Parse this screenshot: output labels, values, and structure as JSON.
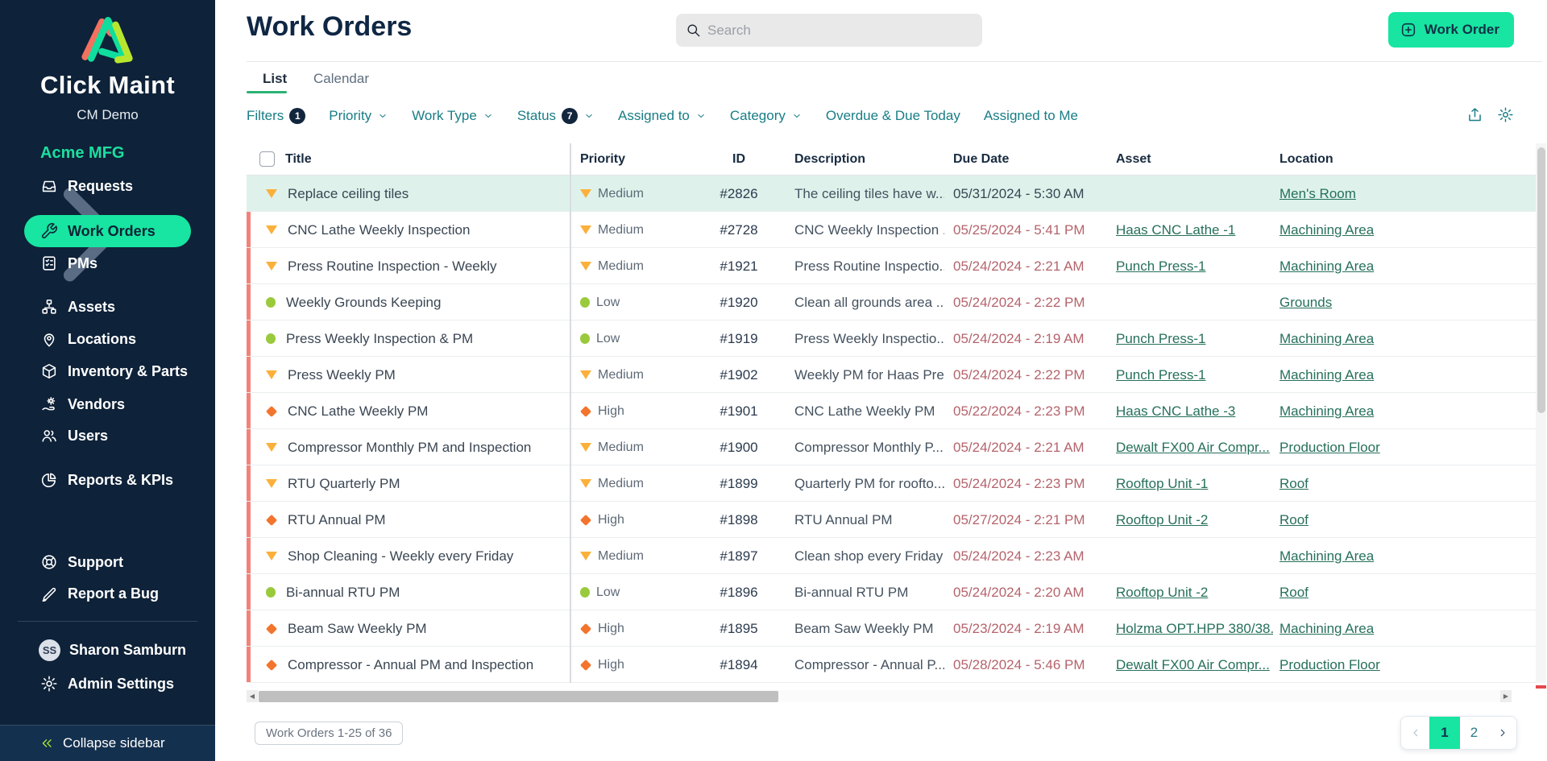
{
  "sidebar": {
    "brand": "Click Maint",
    "subtitle": "CM Demo",
    "account": {
      "label": "Acme MFG"
    },
    "nav": [
      {
        "label": "Requests",
        "icon": "requests-icon"
      },
      {
        "label": "Work Orders",
        "icon": "wrench-icon",
        "active": true
      },
      {
        "label": "PMs",
        "icon": "checklist-icon"
      },
      {
        "label": "Assets",
        "icon": "hierarchy-icon"
      },
      {
        "label": "Locations",
        "icon": "map-pin-icon"
      },
      {
        "label": "Inventory & Parts",
        "icon": "box-icon"
      },
      {
        "label": "Vendors",
        "icon": "vendor-gear-icon"
      },
      {
        "label": "Users",
        "icon": "users-icon"
      },
      {
        "label": "Reports & KPIs",
        "icon": "pie-chart-icon"
      }
    ],
    "secondary_nav": [
      {
        "label": "Support",
        "icon": "lifebuoy-icon"
      },
      {
        "label": "Report a Bug",
        "icon": "pencil-icon"
      }
    ],
    "user": {
      "initials": "SS",
      "name": "Sharon Samburn"
    },
    "admin": {
      "label": "Admin Settings",
      "icon": "gear-icon"
    },
    "collapse_label": "Collapse sidebar"
  },
  "header": {
    "title": "Work Orders",
    "search_placeholder": "Search",
    "new_button_label": "Work Order"
  },
  "tabs": [
    {
      "label": "List",
      "active": true
    },
    {
      "label": "Calendar",
      "active": false
    }
  ],
  "filters": {
    "items": [
      {
        "label": "Filters",
        "badge": "1"
      },
      {
        "label": "Priority",
        "caret": true
      },
      {
        "label": "Work Type",
        "caret": true
      },
      {
        "label": "Status",
        "badge": "7",
        "caret": true
      },
      {
        "label": "Assigned to",
        "caret": true
      },
      {
        "label": "Category",
        "caret": true
      },
      {
        "label": "Overdue & Due Today"
      },
      {
        "label": "Assigned to Me"
      }
    ],
    "action_icons": [
      "export-icon",
      "settings-gear-icon"
    ]
  },
  "table": {
    "columns": [
      "Title",
      "Priority",
      "ID",
      "Description",
      "Due Date",
      "Asset",
      "Location"
    ],
    "rows": [
      {
        "title": "Replace ceiling tiles",
        "priority": "Medium",
        "id": "#2826",
        "description": "The ceiling tiles have w...",
        "due": "05/31/2024 - 5:30 AM",
        "asset": "",
        "location": "Men's Room",
        "overdue": false,
        "selected": true
      },
      {
        "title": "CNC Lathe Weekly Inspection",
        "priority": "Medium",
        "id": "#2728",
        "description": "CNC Weekly Inspection ...",
        "due": "05/25/2024 - 5:41 PM",
        "asset": "Haas CNC Lathe -1",
        "location": "Machining Area",
        "overdue": true,
        "selected": false
      },
      {
        "title": "Press Routine Inspection - Weekly",
        "priority": "Medium",
        "id": "#1921",
        "description": "Press Routine Inspectio...",
        "due": "05/24/2024 - 2:21 AM",
        "asset": "Punch Press-1",
        "location": "Machining Area",
        "overdue": true,
        "selected": false
      },
      {
        "title": "Weekly Grounds Keeping",
        "priority": "Low",
        "id": "#1920",
        "description": "Clean all grounds area ...",
        "due": "05/24/2024 - 2:22 PM",
        "asset": "",
        "location": "Grounds",
        "overdue": true,
        "selected": false
      },
      {
        "title": "Press Weekly Inspection & PM",
        "priority": "Low",
        "id": "#1919",
        "description": "Press Weekly Inspectio...",
        "due": "05/24/2024 - 2:19 AM",
        "asset": "Punch Press-1",
        "location": "Machining Area",
        "overdue": true,
        "selected": false
      },
      {
        "title": "Press Weekly PM",
        "priority": "Medium",
        "id": "#1902",
        "description": "Weekly PM for Haas Pre...",
        "due": "05/24/2024 - 2:22 PM",
        "asset": "Punch Press-1",
        "location": "Machining Area",
        "overdue": true,
        "selected": false
      },
      {
        "title": "CNC Lathe Weekly PM",
        "priority": "High",
        "id": "#1901",
        "description": "CNC Lathe Weekly PM",
        "due": "05/22/2024 - 2:23 PM",
        "asset": "Haas CNC Lathe -3",
        "location": "Machining Area",
        "overdue": true,
        "selected": false
      },
      {
        "title": "Compressor Monthly PM and Inspection",
        "priority": "Medium",
        "id": "#1900",
        "description": "Compressor Monthly P...",
        "due": "05/24/2024 - 2:21 AM",
        "asset": "Dewalt FX00 Air Compr...",
        "location": "Production Floor",
        "overdue": true,
        "selected": false
      },
      {
        "title": "RTU Quarterly PM",
        "priority": "Medium",
        "id": "#1899",
        "description": "Quarterly PM for roofto...",
        "due": "05/24/2024 - 2:23 PM",
        "asset": "Rooftop Unit -1",
        "location": "Roof",
        "overdue": true,
        "selected": false
      },
      {
        "title": "RTU Annual PM",
        "priority": "High",
        "id": "#1898",
        "description": "RTU Annual PM",
        "due": "05/27/2024 - 2:21 PM",
        "asset": "Rooftop Unit -2",
        "location": "Roof",
        "overdue": true,
        "selected": false
      },
      {
        "title": "Shop Cleaning - Weekly every Friday",
        "priority": "Medium",
        "id": "#1897",
        "description": "Clean shop every Friday",
        "due": "05/24/2024 - 2:23 AM",
        "asset": "",
        "location": "Machining Area",
        "overdue": true,
        "selected": false
      },
      {
        "title": "Bi-annual RTU PM",
        "priority": "Low",
        "id": "#1896",
        "description": "Bi-annual RTU PM",
        "due": "05/24/2024 - 2:20 AM",
        "asset": "Rooftop Unit -2",
        "location": "Roof",
        "overdue": true,
        "selected": false
      },
      {
        "title": "Beam Saw Weekly PM",
        "priority": "High",
        "id": "#1895",
        "description": "Beam Saw Weekly PM",
        "due": "05/23/2024 - 2:19 AM",
        "asset": "Holzma OPT.HPP 380/38...",
        "location": "Machining Area",
        "overdue": true,
        "selected": false
      },
      {
        "title": "Compressor - Annual PM and Inspection",
        "priority": "High",
        "id": "#1894",
        "description": "Compressor - Annual P...",
        "due": "05/28/2024 - 5:46 PM",
        "asset": "Dewalt FX00 Air Compr...",
        "location": "Production Floor",
        "overdue": true,
        "selected": false
      }
    ]
  },
  "footer": {
    "range_label": "Work Orders 1-25 of 36",
    "pagination": {
      "pages": [
        "1",
        "2"
      ],
      "active": "1"
    }
  },
  "colors": {
    "sidebar_bg": "#0E2239",
    "accent_green": "#17E5A1",
    "tab_underline_green": "#2BB273",
    "filter_teal": "#187D85",
    "link_green": "#26705A",
    "overdue_red": "#B4636B",
    "row_accent_salmon": "#F1837A",
    "selected_row_bg": "#DEF2EB",
    "priority_medium": "#FBB03B",
    "priority_low": "#9ACA3C",
    "priority_high": "#F3742C"
  }
}
